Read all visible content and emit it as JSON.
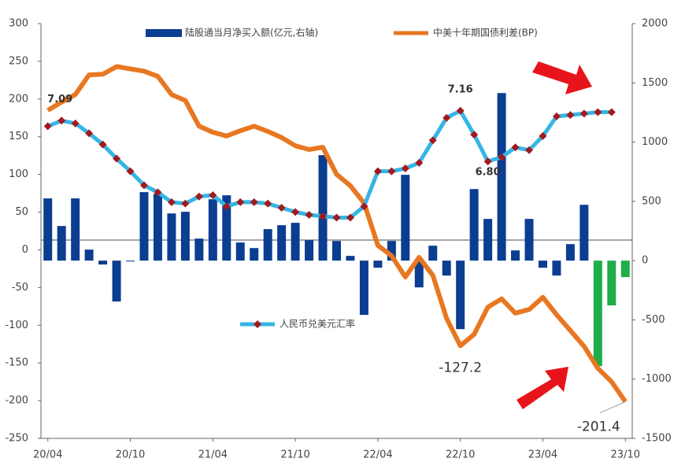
{
  "chart_data": {
    "type": "combo",
    "categories": [
      "20/04",
      null,
      null,
      null,
      null,
      null,
      "20/10",
      null,
      null,
      null,
      null,
      null,
      "21/04",
      null,
      null,
      null,
      null,
      null,
      "21/10",
      null,
      null,
      null,
      null,
      null,
      "22/04",
      null,
      null,
      null,
      null,
      null,
      "22/10",
      null,
      null,
      null,
      null,
      null,
      "23/04",
      null,
      null,
      null,
      null,
      null,
      "23/10"
    ],
    "ylim": [
      -250,
      300
    ],
    "yticks": [
      300,
      250,
      200,
      150,
      100,
      50,
      0,
      -50,
      -100,
      -150,
      -200,
      -250
    ],
    "y2lim": [
      -1500,
      2000
    ],
    "y2ticks": [
      2000,
      1500,
      1000,
      500,
      0,
      -500,
      -1000,
      -1500
    ],
    "y3lim": [
      4.83,
      7.78
    ],
    "series": [
      {
        "name": "陆股通当月净买入额(亿元,右轴)",
        "type": "bar",
        "axis": "y2",
        "color": "#0b3d91",
        "colors": [
          "#0b3d91",
          "#0b3d91",
          "#0b3d91",
          "#0b3d91",
          "#0b3d91",
          "#0b3d91",
          "#0b3d91",
          "#0b3d91",
          "#0b3d91",
          "#0b3d91",
          "#0b3d91",
          "#0b3d91",
          "#0b3d91",
          "#0b3d91",
          "#0b3d91",
          "#0b3d91",
          "#0b3d91",
          "#0b3d91",
          "#0b3d91",
          "#0b3d91",
          "#0b3d91",
          "#0b3d91",
          "#0b3d91",
          "#0b3d91",
          "#0b3d91",
          "#0b3d91",
          "#0b3d91",
          "#0b3d91",
          "#0b3d91",
          "#0b3d91",
          "#0b3d91",
          "#0b3d91",
          "#0b3d91",
          "#0b3d91",
          "#0b3d91",
          "#0b3d91",
          "#0b3d91",
          "#0b3d91",
          "#0b3d91",
          "#0b3d91",
          "#1fae4a",
          "#1fae4a",
          "#1fae4a"
        ],
        "values": [
          525,
          292,
          525,
          93,
          -33,
          -345,
          -7,
          578,
          564,
          398,
          412,
          186,
          518,
          551,
          153,
          106,
          266,
          299,
          319,
          173,
          890,
          166,
          40,
          -458,
          -60,
          166,
          724,
          -226,
          126,
          -126,
          -578,
          604,
          352,
          1414,
          86,
          352,
          -60,
          -126,
          139,
          471,
          -890,
          -378,
          -139
        ]
      },
      {
        "name": "中美十年期国债利差(BP)",
        "type": "line",
        "axis": "y",
        "color": "#e87722",
        "values": [
          185,
          196,
          206,
          232,
          233,
          243,
          240,
          237,
          230,
          206,
          198,
          164,
          156,
          151,
          158,
          164,
          157,
          149,
          138,
          133,
          136,
          100,
          85,
          62,
          6,
          -8,
          -36,
          -10,
          -34,
          -91,
          -127.2,
          -112,
          -76,
          -65,
          -84,
          -79,
          -63,
          -86,
          -107,
          -128,
          -157,
          -175,
          -201.4
        ],
        "value_labels": [
          null,
          null,
          null,
          null,
          null,
          null,
          null,
          null,
          null,
          null,
          null,
          null,
          null,
          null,
          null,
          null,
          null,
          null,
          null,
          null,
          null,
          null,
          null,
          null,
          null,
          null,
          null,
          null,
          null,
          null,
          "-127.2",
          null,
          null,
          null,
          null,
          null,
          null,
          null,
          null,
          null,
          null,
          null,
          "-201.4"
        ]
      },
      {
        "name": "人民币兑美元汇率",
        "type": "line",
        "axis": "y3",
        "color": "#35b5e5",
        "marker_color": "#a3191f",
        "values": [
          7.05,
          7.09,
          7.07,
          7.0,
          6.92,
          6.82,
          6.73,
          6.63,
          6.58,
          6.51,
          6.5,
          6.55,
          6.56,
          6.48,
          6.51,
          6.51,
          6.5,
          6.47,
          6.44,
          6.42,
          6.41,
          6.4,
          6.4,
          6.48,
          6.73,
          6.73,
          6.75,
          6.79,
          6.95,
          7.11,
          7.16,
          6.99,
          6.8,
          6.83,
          6.9,
          6.88,
          6.98,
          7.12,
          7.13,
          7.14,
          7.15,
          7.15,
          null
        ],
        "value_labels": [
          null,
          "7.09",
          null,
          null,
          null,
          null,
          null,
          null,
          null,
          null,
          null,
          null,
          null,
          null,
          null,
          null,
          null,
          null,
          null,
          null,
          null,
          null,
          null,
          null,
          null,
          null,
          null,
          null,
          null,
          null,
          "7.16",
          null,
          "6.80",
          null,
          null,
          null,
          null,
          null,
          null,
          null,
          null,
          null,
          null
        ]
      }
    ]
  }
}
